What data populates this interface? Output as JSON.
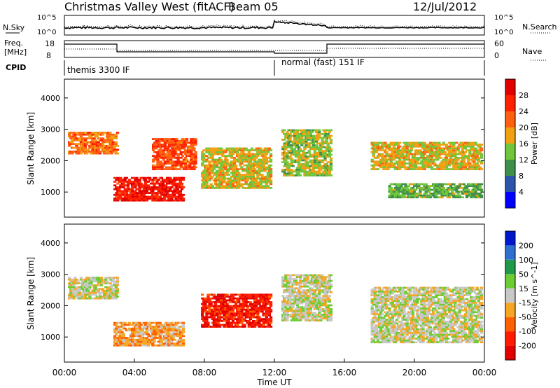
{
  "header": {
    "station": "Christmas Valley West (fitACF)",
    "beam": "Beam 05",
    "date": "12/Jul/2012"
  },
  "noise_panel": {
    "left_label": "N.Sky",
    "right_label": "N.Search",
    "left_ticks": [
      "10^5",
      "10^0"
    ],
    "right_ticks": [
      "10^5",
      "10^0"
    ]
  },
  "freq_panel": {
    "left_label_1": "Freq.",
    "left_label_2": "[MHz]",
    "right_label": "Nave",
    "left_ticks": [
      "18",
      "8"
    ],
    "right_ticks": [
      "60",
      "0"
    ]
  },
  "cpid": {
    "label": "CPID",
    "mode_1": "themis 3300 IF",
    "mode_2": "normal (fast) 151 IF"
  },
  "x_axis": {
    "label": "Time UT",
    "ticks": [
      "00:00",
      "04:00",
      "08:00",
      "12:00",
      "16:00",
      "20:00",
      "00:00"
    ]
  },
  "colors": {
    "power_scale": [
      "#0000ff",
      "#2a55aa",
      "#3f8f4a",
      "#6fc63a",
      "#f0a010",
      "#ff6010",
      "#ff2000",
      "#e00000"
    ],
    "velocity_scale": [
      "#0018cc",
      "#2f6fd0",
      "#1f9a4a",
      "#6ccc33",
      "#c8c8c8",
      "#f5a623",
      "#ff6000",
      "#ff1a00",
      "#e00000"
    ]
  },
  "chart_data": [
    {
      "type": "heatmap",
      "title": "Power",
      "xlabel": "Time UT",
      "ylabel": "Slant Range [km]",
      "xlim": [
        "00:00",
        "24:00"
      ],
      "ylim": [
        200,
        4600
      ],
      "yticks": [
        1000,
        2000,
        3000,
        4000
      ],
      "colorbar": {
        "label": "Power [dB]",
        "ticks": [
          4,
          8,
          12,
          16,
          20,
          24,
          28
        ],
        "range": [
          0,
          30
        ]
      },
      "echo_regions": [
        {
          "t0": 0.2,
          "t1": 3.0,
          "r0": 2200,
          "r1": 2900,
          "value": 20
        },
        {
          "t0": 2.8,
          "t1": 6.8,
          "r0": 700,
          "r1": 1500,
          "value": 26
        },
        {
          "t0": 5.0,
          "t1": 7.5,
          "r0": 1700,
          "r1": 2700,
          "value": 22
        },
        {
          "t0": 7.8,
          "t1": 11.8,
          "r0": 1100,
          "r1": 2400,
          "value": 16
        },
        {
          "t0": 12.4,
          "t1": 15.2,
          "r0": 1500,
          "r1": 3000,
          "value": 14
        },
        {
          "t0": 17.5,
          "t1": 23.8,
          "r0": 1700,
          "r1": 2600,
          "value": 16
        },
        {
          "t0": 18.5,
          "t1": 23.8,
          "r0": 800,
          "r1": 1300,
          "value": 12
        }
      ]
    },
    {
      "type": "heatmap",
      "title": "Velocity",
      "xlabel": "Time UT",
      "ylabel": "Slant Range [km]",
      "xlim": [
        "00:00",
        "24:00"
      ],
      "ylim": [
        200,
        4600
      ],
      "yticks": [
        1000,
        2000,
        3000,
        4000
      ],
      "colorbar": {
        "label": "Velocity [m s^-1]",
        "ticks": [
          200,
          100,
          50,
          15,
          -15,
          -50,
          -100,
          -200
        ],
        "range": [
          -250,
          250
        ]
      },
      "echo_regions": [
        {
          "t0": 0.2,
          "t1": 3.0,
          "r0": 2200,
          "r1": 2900,
          "value": 0
        },
        {
          "t0": 2.8,
          "t1": 6.8,
          "r0": 700,
          "r1": 1500,
          "value": -60
        },
        {
          "t0": 7.8,
          "t1": 11.8,
          "r0": 1300,
          "r1": 2400,
          "value": -180
        },
        {
          "t0": 12.4,
          "t1": 15.2,
          "r0": 1500,
          "r1": 3000,
          "value": 0
        },
        {
          "t0": 17.5,
          "t1": 23.8,
          "r0": 800,
          "r1": 2600,
          "value": 0
        }
      ]
    }
  ]
}
